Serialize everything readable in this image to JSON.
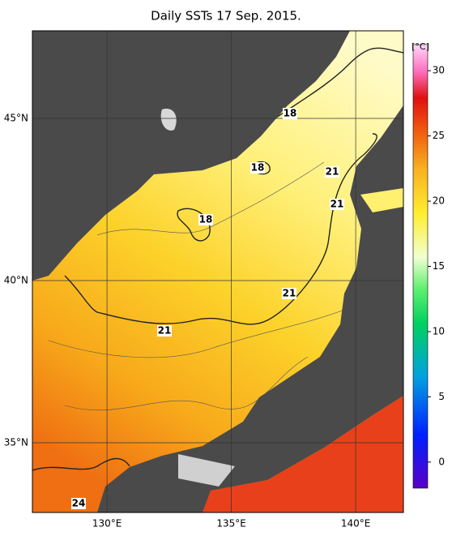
{
  "title": "Daily SSTs 17 Sep. 2015.",
  "map": {
    "lon_labels": [
      {
        "value": 130,
        "label": "130°E"
      },
      {
        "value": 135,
        "label": "135°E"
      },
      {
        "value": 140,
        "label": "140°E"
      }
    ],
    "lat_labels": [
      {
        "value": 45,
        "label": "45°N"
      },
      {
        "value": 40,
        "label": "40°N"
      },
      {
        "value": 35,
        "label": "35°N"
      }
    ],
    "contour_labels": [
      "18",
      "18",
      "18",
      "21",
      "21",
      "21",
      "21",
      "24"
    ]
  },
  "colorbar": {
    "unit": "[°C]",
    "range": [
      -2,
      32
    ],
    "ticks": [
      0,
      5,
      10,
      15,
      20,
      25,
      30
    ]
  }
}
